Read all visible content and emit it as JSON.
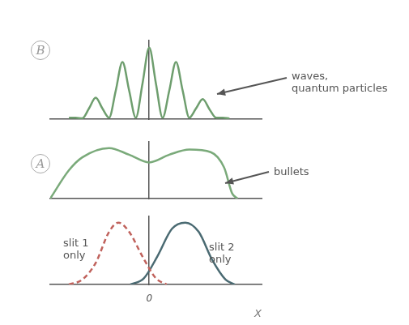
{
  "chart_data": [
    {
      "type": "line",
      "title": "B",
      "annotation": [
        "waves,",
        "quantum particles"
      ],
      "x": [
        -3,
        -2.75,
        -2.5,
        -2.25,
        -2,
        -1.75,
        -1.5,
        -1.25,
        -1,
        -0.75,
        -0.5,
        -0.25,
        0,
        0.25,
        0.5,
        0.75,
        1,
        1.25,
        1.5,
        1.75,
        2,
        2.25,
        2.5,
        2.75,
        3
      ],
      "values": [
        0.02,
        0.02,
        0.01,
        0.15,
        0.3,
        0.15,
        0.02,
        0.4,
        0.8,
        0.4,
        0.02,
        0.5,
        1.0,
        0.5,
        0.02,
        0.4,
        0.8,
        0.4,
        0.02,
        0.15,
        0.28,
        0.14,
        0.02,
        0.02,
        0.01
      ],
      "color": "#6e9e6e",
      "xlim": [
        -3.7,
        4.2
      ],
      "ylim": [
        0,
        1.1
      ],
      "grid": false,
      "tick_labels": false
    },
    {
      "type": "line",
      "title": "A",
      "annotation": [
        "bullets"
      ],
      "x": [
        -3.7,
        -3,
        -2.5,
        -1.5,
        -0.75,
        0,
        0.75,
        1.5,
        2.3,
        2.8,
        3.1,
        3.3
      ],
      "values": [
        0,
        0.55,
        0.8,
        0.98,
        0.85,
        0.7,
        0.85,
        0.95,
        0.9,
        0.6,
        0.1,
        0
      ],
      "color": "#7aaa7a",
      "xlim": [
        -3.7,
        4.2
      ],
      "ylim": [
        0,
        1.1
      ],
      "grid": false,
      "tick_labels": false
    },
    {
      "type": "line",
      "xlabel": "X",
      "xticks": [
        0
      ],
      "tick_labels": "x",
      "series": [
        {
          "name": "slit 1 only",
          "color": "#c0625c",
          "line_style": "dashed",
          "x": [
            -3,
            -2.5,
            -2,
            -1.5,
            -1.15,
            -0.75,
            -0.25,
            0.25,
            0.65
          ],
          "values": [
            0,
            0.08,
            0.35,
            0.85,
            1.0,
            0.85,
            0.45,
            0.1,
            0
          ]
        },
        {
          "name": "slit 2 only",
          "color": "#4a6a72",
          "line_style": "solid",
          "x": [
            -0.7,
            -0.2,
            0.3,
            0.85,
            1.35,
            1.85,
            2.35,
            2.85,
            3.2
          ],
          "values": [
            0,
            0.1,
            0.45,
            0.9,
            1.0,
            0.85,
            0.4,
            0.08,
            0
          ]
        }
      ],
      "xlim": [
        -3.7,
        4.2
      ],
      "ylim": [
        0,
        1.1
      ],
      "grid": false
    }
  ]
}
